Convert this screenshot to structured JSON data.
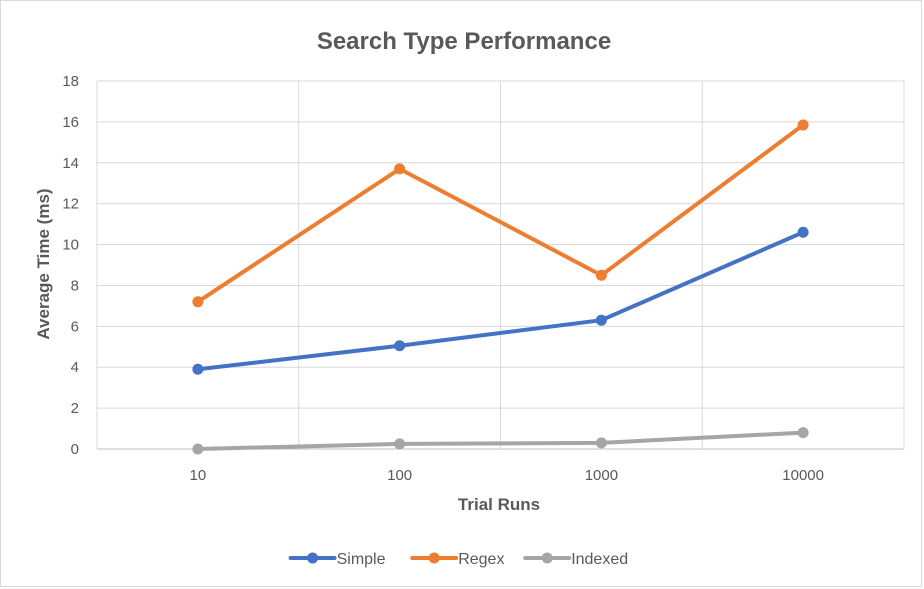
{
  "chart_data": {
    "type": "line",
    "title": "Search Type Performance",
    "xlabel": "Trial Runs",
    "ylabel": "Average Time (ms)",
    "categories": [
      "10",
      "100",
      "1000",
      "10000"
    ],
    "ylim": [
      0,
      18
    ],
    "yticks": [
      "0",
      "2",
      "4",
      "6",
      "8",
      "10",
      "12",
      "14",
      "16",
      "18"
    ],
    "grid": true,
    "legend_position": "bottom",
    "series": [
      {
        "name": "Simple",
        "color": "#4472C4",
        "values": [
          3.9,
          5.05,
          6.3,
          10.6
        ]
      },
      {
        "name": "Regex",
        "color": "#ED7D31",
        "values": [
          7.2,
          13.7,
          8.5,
          15.85
        ]
      },
      {
        "name": "Indexed",
        "color": "#A5A5A5",
        "values": [
          0.0,
          0.25,
          0.3,
          0.8
        ]
      }
    ]
  }
}
